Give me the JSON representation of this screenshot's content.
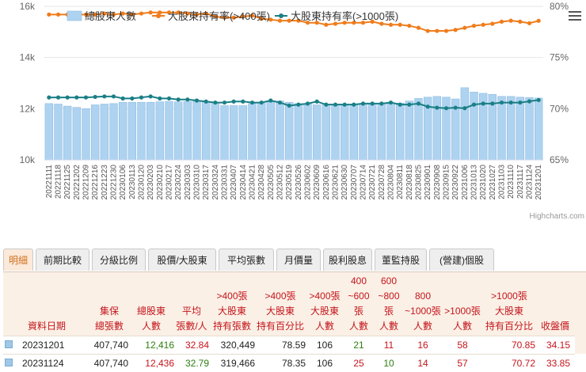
{
  "chart_data": {
    "type": "bar",
    "categories": [
      "20221111",
      "20221118",
      "20221125",
      "20221202",
      "20221209",
      "20221216",
      "20221223",
      "20221230",
      "20230106",
      "20230113",
      "20230120",
      "20230203",
      "20230210",
      "20230217",
      "20230224",
      "20230303",
      "20230310",
      "20230317",
      "20230324",
      "20230331",
      "20230407",
      "20230414",
      "20230421",
      "20230428",
      "20230505",
      "20230512",
      "20230519",
      "20230526",
      "20230602",
      "20230609",
      "20230616",
      "20230621",
      "20230630",
      "20230707",
      "20230714",
      "20230721",
      "20230728",
      "20230804",
      "20230811",
      "20230818",
      "20230825",
      "20230901",
      "20230908",
      "20230915",
      "20230922",
      "20231006",
      "20231013",
      "20231020",
      "20231027",
      "20231103",
      "20231110",
      "20231117",
      "20231124",
      "20231201"
    ],
    "y_left_ticks": [
      "10k",
      "12k",
      "14k",
      "16k"
    ],
    "y_right_ticks": [
      "65%",
      "70%",
      "75%",
      "80%"
    ],
    "ylim_left": [
      10000,
      16000
    ],
    "ylim_right": [
      65,
      80
    ],
    "series": [
      {
        "name": "總股東人數",
        "type": "bar",
        "axis": "left",
        "color": "#aed3f0",
        "values": [
          12200,
          12180,
          12100,
          12050,
          12000,
          12150,
          12180,
          12200,
          12250,
          12250,
          12250,
          12250,
          12270,
          12280,
          12270,
          12280,
          12300,
          12280,
          12250,
          12120,
          12120,
          12120,
          12200,
          12250,
          12270,
          12300,
          12250,
          12200,
          12200,
          12150,
          12160,
          12180,
          12180,
          12180,
          12200,
          12200,
          12200,
          12200,
          12220,
          12300,
          12400,
          12450,
          12480,
          12450,
          12380,
          12820,
          12650,
          12600,
          12560,
          12480,
          12480,
          12450,
          12436,
          12416
        ]
      },
      {
        "name": "大股東持有率(>400張)",
        "type": "line",
        "axis": "right",
        "color": "#f07c1b",
        "values": [
          79.2,
          79.2,
          79.2,
          79.2,
          79.2,
          79.2,
          79.3,
          79.2,
          79.3,
          79.2,
          79.3,
          79.4,
          79.4,
          79.4,
          79.4,
          79.3,
          79.2,
          79.3,
          79.0,
          78.9,
          78.9,
          79.0,
          79.1,
          78.8,
          78.7,
          78.6,
          78.6,
          78.6,
          78.4,
          78.4,
          78.2,
          78.3,
          78.4,
          78.4,
          78.4,
          78.5,
          78.3,
          78.2,
          78.2,
          78.1,
          77.9,
          77.6,
          77.6,
          77.6,
          77.7,
          77.9,
          78.1,
          78.2,
          78.3,
          78.5,
          78.6,
          78.5,
          78.35,
          78.59
        ]
      },
      {
        "name": "大股東持有率(>1000張)",
        "type": "line",
        "axis": "right",
        "color": "#1a7f86",
        "values": [
          71.1,
          71.1,
          71.1,
          71.1,
          71.1,
          71.15,
          71.2,
          71.2,
          71.0,
          71.0,
          71.1,
          71.2,
          71.0,
          71.0,
          70.9,
          70.9,
          70.8,
          70.7,
          70.6,
          70.6,
          70.7,
          70.7,
          70.6,
          70.6,
          70.8,
          70.6,
          70.3,
          70.4,
          70.5,
          70.7,
          70.4,
          70.4,
          70.4,
          70.4,
          70.5,
          70.5,
          70.5,
          70.6,
          70.4,
          70.4,
          70.5,
          70.2,
          70.1,
          70.05,
          70.1,
          70.05,
          70.4,
          70.5,
          70.5,
          70.6,
          70.6,
          70.6,
          70.72,
          70.85
        ]
      }
    ]
  },
  "credit": "Highcharts.com",
  "tabs": [
    "明細",
    "前期比較",
    "分級比例",
    "股價/大股東",
    "平均張數",
    "月價量",
    "股利股息",
    "董監持股",
    "(營建)個股"
  ],
  "table": {
    "headers": [
      [
        "資料日期"
      ],
      [
        "集保",
        "總張數"
      ],
      [
        "總股東",
        "人數"
      ],
      [
        "平均",
        "張數/人"
      ],
      [
        ">400張",
        "大股東",
        "持有張數"
      ],
      [
        ">400張",
        "大股東",
        "持有百分比"
      ],
      [
        ">400張",
        "大股東",
        "人數"
      ],
      [
        "400",
        "~600張",
        "人數"
      ],
      [
        "600",
        "~800張",
        "人數"
      ],
      [
        "800",
        "~1000張",
        "人數"
      ],
      [
        ">1000張",
        "人數"
      ],
      [
        ">1000張",
        "大股東",
        "持有百分比"
      ],
      [
        "收盤價"
      ]
    ],
    "rows": [
      [
        "20231201",
        "407,740",
        "12,416",
        "32.84",
        "320,449",
        "78.59",
        "106",
        "21",
        "11",
        "16",
        "58",
        "70.85",
        "34.15"
      ],
      [
        "20231124",
        "407,740",
        "12,436",
        "32.79",
        "319,466",
        "78.35",
        "106",
        "25",
        "10",
        "14",
        "57",
        "70.72",
        "33.85"
      ]
    ]
  }
}
